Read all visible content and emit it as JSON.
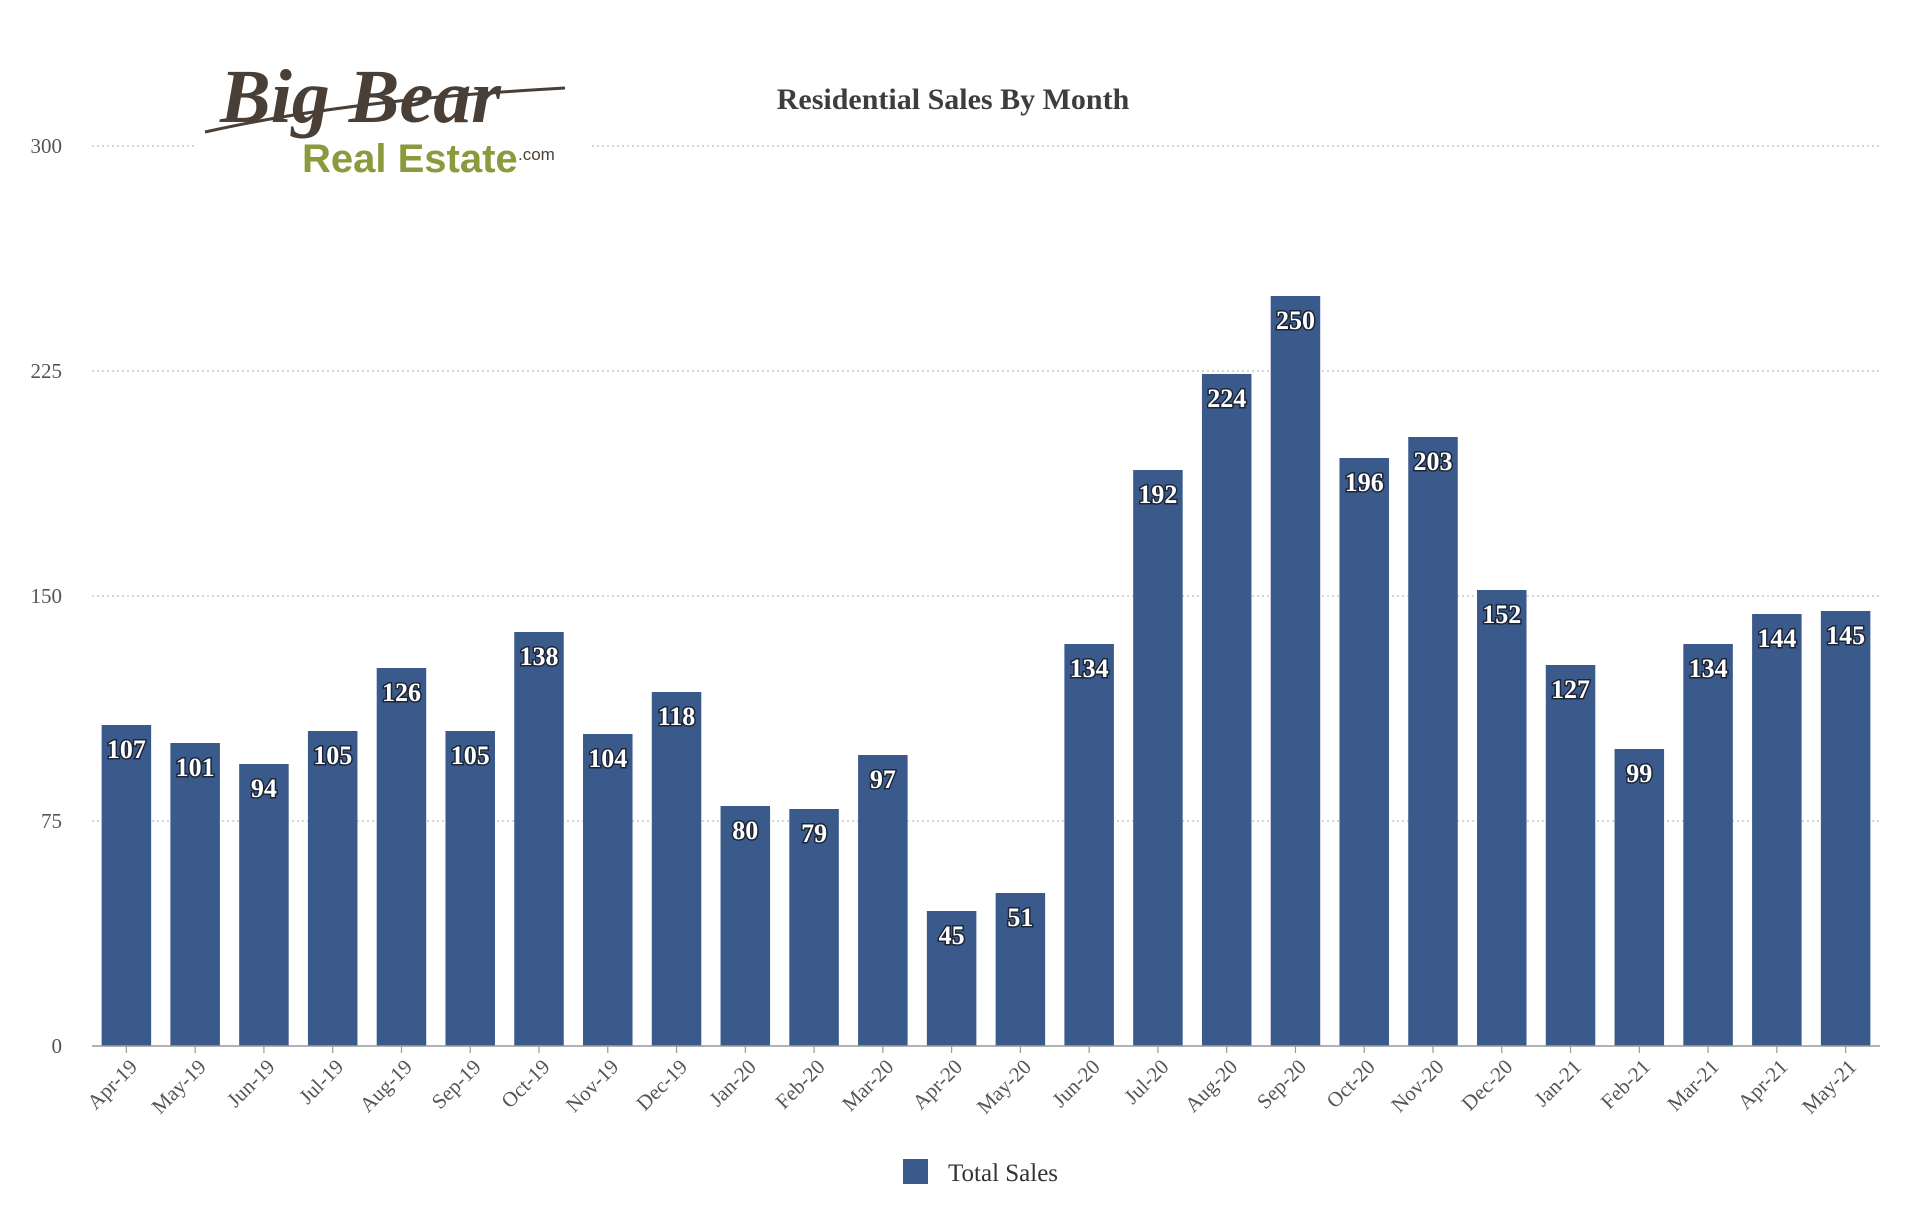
{
  "logo": {
    "line1": "Big Bear",
    "line2": "Real Estate",
    "suffix": ".com"
  },
  "chart_data": {
    "type": "bar",
    "title": "Residential Sales By Month",
    "xlabel": "",
    "ylabel": "",
    "ylim": [
      0,
      300
    ],
    "yticks": [
      0,
      75,
      150,
      225,
      300
    ],
    "grid": true,
    "legend_position": "bottom",
    "categories": [
      "Apr-19",
      "May-19",
      "Jun-19",
      "Jul-19",
      "Aug-19",
      "Sep-19",
      "Oct-19",
      "Nov-19",
      "Dec-19",
      "Jan-20",
      "Feb-20",
      "Mar-20",
      "Apr-20",
      "May-20",
      "Jun-20",
      "Jul-20",
      "Aug-20",
      "Sep-20",
      "Oct-20",
      "Nov-20",
      "Dec-20",
      "Jan-21",
      "Feb-21",
      "Mar-21",
      "Apr-21",
      "May-21"
    ],
    "series": [
      {
        "name": "Total Sales",
        "color": "#3b5a8c",
        "values": [
          107,
          101,
          94,
          105,
          126,
          105,
          138,
          104,
          118,
          80,
          79,
          97,
          45,
          51,
          134,
          192,
          224,
          250,
          196,
          203,
          152,
          127,
          99,
          134,
          144,
          145
        ]
      }
    ]
  }
}
